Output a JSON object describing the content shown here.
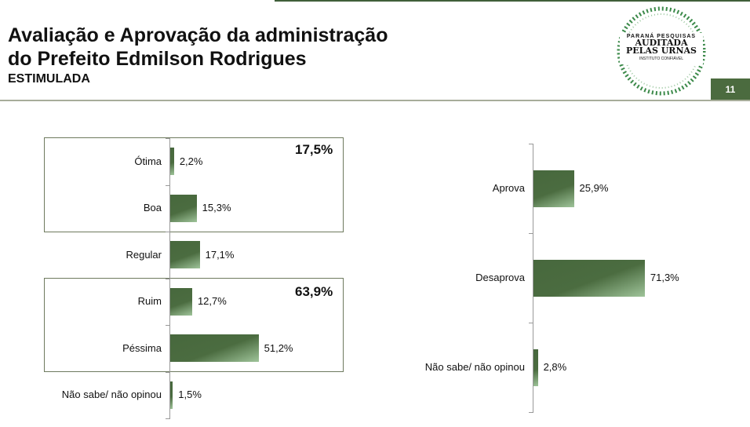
{
  "header": {
    "title_line1": "Avaliação e Aprovação da administração",
    "title_line2": "do Prefeito Edmilson Rodrigues",
    "subtitle": "ESTIMULADA",
    "page_number": "11"
  },
  "logo": {
    "line1": "PARANÁ PESQUISAS",
    "line2": "AUDITADA",
    "line3": "PELAS URNAS",
    "line4": "INSTITUTO CONFIÁVEL"
  },
  "chart_data": [
    {
      "type": "bar",
      "orientation": "horizontal",
      "title": "Avaliação",
      "categories": [
        "Ótima",
        "Boa",
        "Regular",
        "Ruim",
        "Péssima",
        "Não sabe/ não opinou"
      ],
      "values": [
        2.2,
        15.3,
        17.1,
        12.7,
        51.2,
        1.5
      ],
      "labels": [
        "2,2%",
        "15,3%",
        "17,1%",
        "12,7%",
        "51,2%",
        "1,5%"
      ],
      "groups": [
        {
          "label": "17,5%",
          "members": [
            "Ótima",
            "Boa"
          ]
        },
        {
          "label": "63,9%",
          "members": [
            "Ruim",
            "Péssima"
          ]
        }
      ]
    },
    {
      "type": "bar",
      "orientation": "horizontal",
      "title": "Aprovação",
      "categories": [
        "Aprova",
        "Desaprova",
        "Não sabe/ não opinou"
      ],
      "values": [
        25.9,
        71.3,
        2.8
      ],
      "labels": [
        "25,9%",
        "71,3%",
        "2,8%"
      ]
    }
  ]
}
